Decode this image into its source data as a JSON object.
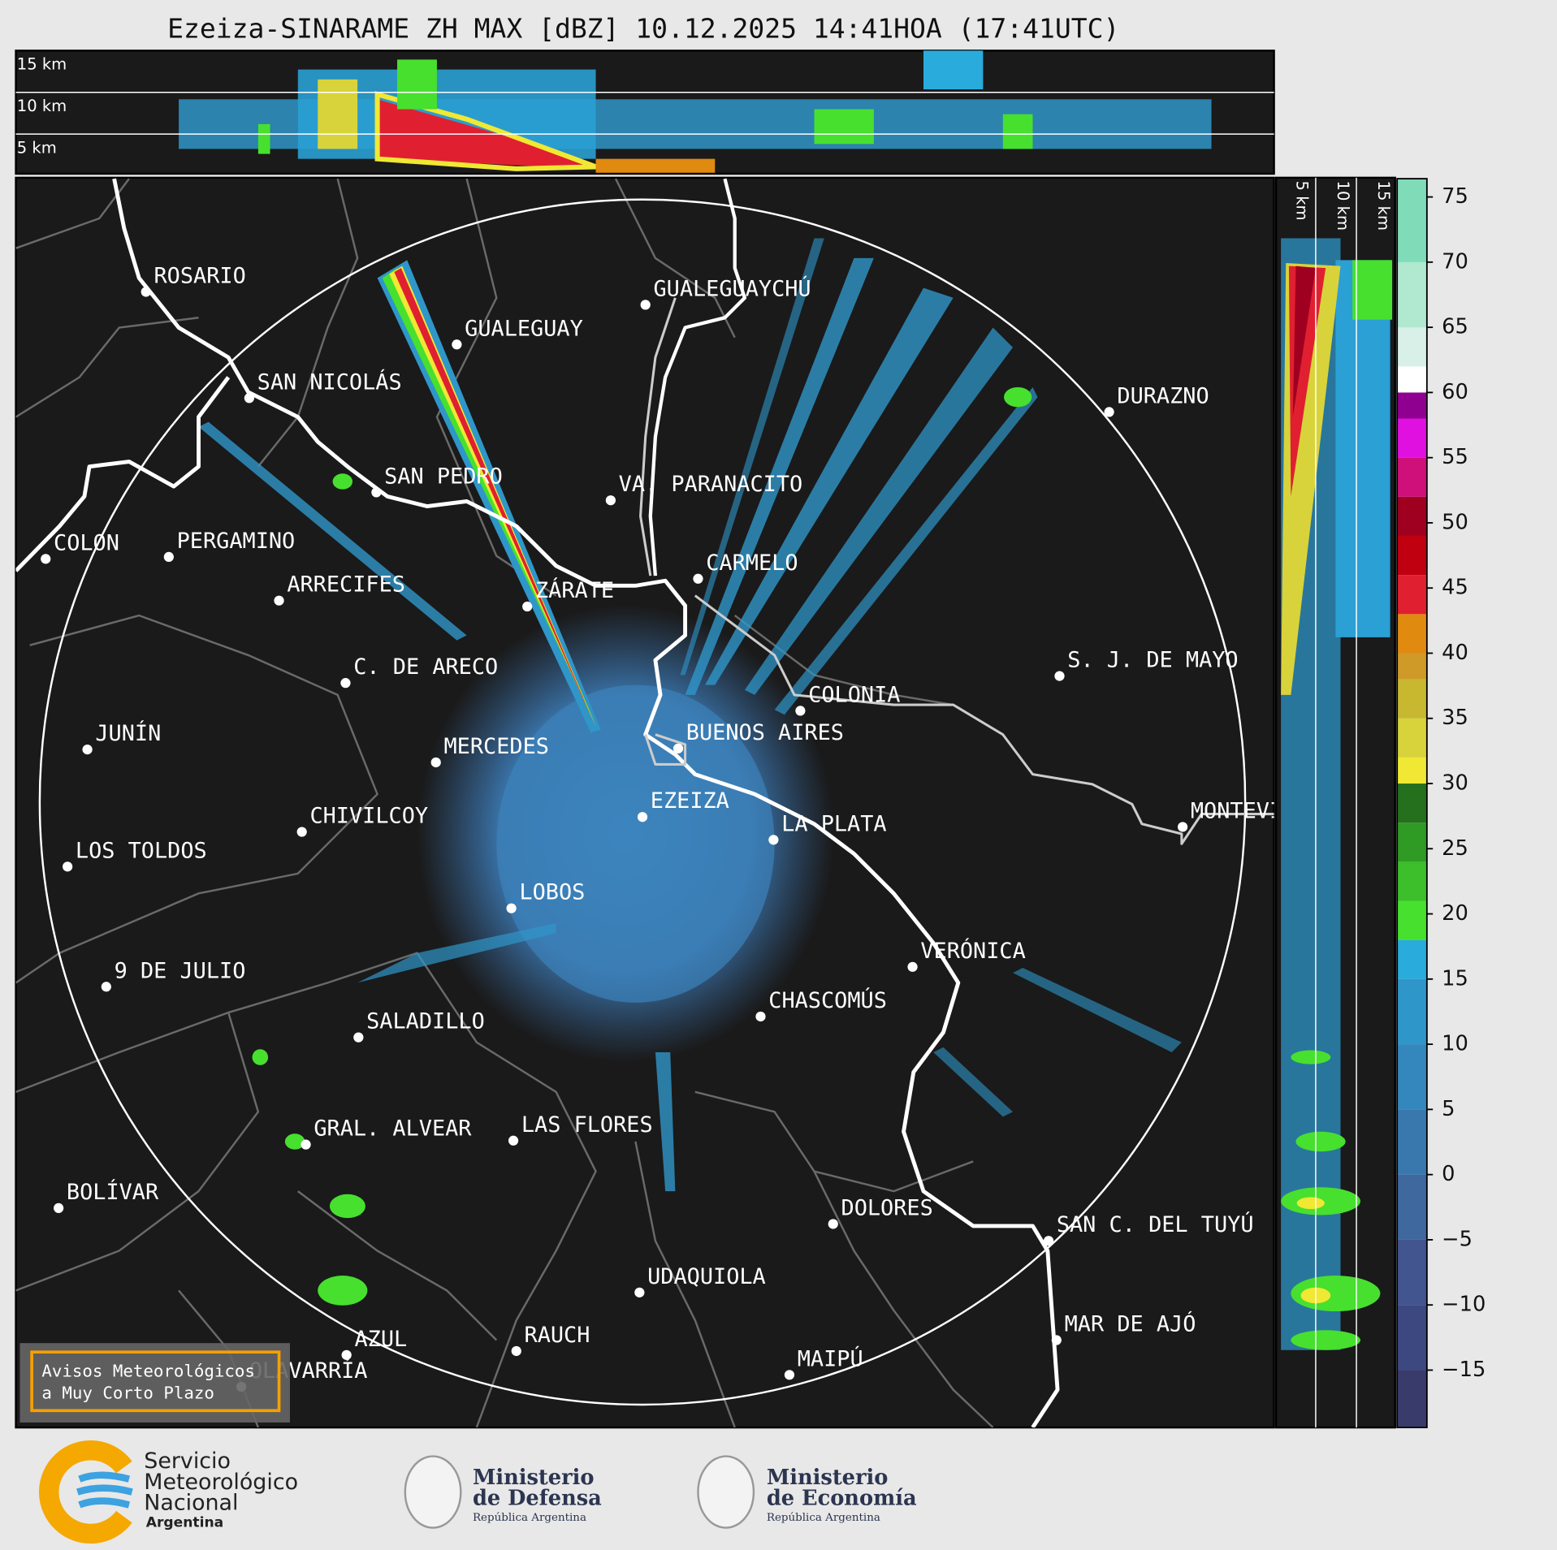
{
  "title": "Ezeiza-SINARAME ZH MAX [dBZ] 10.12.2025 14:41HOA (17:41UTC)",
  "top_panel": {
    "height_labels": [
      "15 km",
      "10 km",
      "5 km"
    ]
  },
  "side_panel": {
    "height_labels": [
      "5 km",
      "10 km",
      "15 km"
    ]
  },
  "cities": [
    {
      "name": "ROSARIO"
    },
    {
      "name": "GUALEGUAYCHÚ"
    },
    {
      "name": "GUALEGUAY"
    },
    {
      "name": "SAN NICOLÁS"
    },
    {
      "name": "DURAZNO"
    },
    {
      "name": "SAN PEDRO"
    },
    {
      "name": "VA. PARANACITO"
    },
    {
      "name": "COLON"
    },
    {
      "name": "PERGAMINO"
    },
    {
      "name": "CARMELO"
    },
    {
      "name": "ARRECIFES"
    },
    {
      "name": "ZÁRATE"
    },
    {
      "name": "S. J. DE MAYO"
    },
    {
      "name": "C. DE ARECO"
    },
    {
      "name": "COLONIA"
    },
    {
      "name": "BUENOS AIRES"
    },
    {
      "name": "JUNÍN"
    },
    {
      "name": "MERCEDES"
    },
    {
      "name": "EZEIZA"
    },
    {
      "name": "MONTEVIDEO"
    },
    {
      "name": "CHIVILCOY"
    },
    {
      "name": "LA PLATA"
    },
    {
      "name": "LOS TOLDOS"
    },
    {
      "name": "LOBOS"
    },
    {
      "name": "VERÓNICA"
    },
    {
      "name": "9 DE JULIO"
    },
    {
      "name": "CHASCOMÚS"
    },
    {
      "name": "SALADILLO"
    },
    {
      "name": "GRAL. ALVEAR"
    },
    {
      "name": "LAS FLORES"
    },
    {
      "name": "BOLÍVAR"
    },
    {
      "name": "DOLORES"
    },
    {
      "name": "SAN C. DEL TUYÚ"
    },
    {
      "name": "UDAQUIOLA"
    },
    {
      "name": "RAUCH"
    },
    {
      "name": "MAR DE AJÓ"
    },
    {
      "name": "AZUL"
    },
    {
      "name": "OLAVARRÍA"
    },
    {
      "name": "MAIPÚ"
    }
  ],
  "colorbar": {
    "lim": [
      -19.4,
      76.4
    ],
    "ticks": [
      75,
      70,
      65,
      60,
      55,
      50,
      45,
      40,
      35,
      30,
      25,
      20,
      15,
      10,
      5,
      0,
      {
        "value": -5,
        "label": "−5"
      },
      {
        "value": -10,
        "label": "−10"
      },
      {
        "value": -15,
        "label": "−15"
      }
    ],
    "bands": [
      {
        "min": -19.4,
        "max": -15,
        "color": "#393c6b"
      },
      {
        "min": -15,
        "max": -10,
        "color": "#3e4880"
      },
      {
        "min": -10,
        "max": -5,
        "color": "#42558f"
      },
      {
        "min": -5,
        "max": 0,
        "color": "#3e689e"
      },
      {
        "min": 0,
        "max": 5,
        "color": "#3978ad"
      },
      {
        "min": 5,
        "max": 10,
        "color": "#3487bc"
      },
      {
        "min": 10,
        "max": 15,
        "color": "#2f96c9"
      },
      {
        "min": 15,
        "max": 18,
        "color": "#29abdc"
      },
      {
        "min": 18,
        "max": 21,
        "color": "#47e02e"
      },
      {
        "min": 21,
        "max": 24,
        "color": "#3cbf2a"
      },
      {
        "min": 24,
        "max": 27,
        "color": "#2f9a24"
      },
      {
        "min": 27,
        "max": 30,
        "color": "#25701d"
      },
      {
        "min": 30,
        "max": 32,
        "color": "#f0e833"
      },
      {
        "min": 32,
        "max": 35,
        "color": "#d8d33a"
      },
      {
        "min": 35,
        "max": 38,
        "color": "#c8b830"
      },
      {
        "min": 38,
        "max": 40,
        "color": "#d09a28"
      },
      {
        "min": 40,
        "max": 43,
        "color": "#e08a10"
      },
      {
        "min": 43,
        "max": 46,
        "color": "#e02030"
      },
      {
        "min": 46,
        "max": 49,
        "color": "#c00010"
      },
      {
        "min": 49,
        "max": 52,
        "color": "#a00020"
      },
      {
        "min": 52,
        "max": 55,
        "color": "#d0107a"
      },
      {
        "min": 55,
        "max": 58,
        "color": "#e010e0"
      },
      {
        "min": 58,
        "max": 60,
        "color": "#900090"
      },
      {
        "min": 60,
        "max": 62,
        "color": "#ffffff"
      },
      {
        "min": 62,
        "max": 65,
        "color": "#d8f0e8"
      },
      {
        "min": 65,
        "max": 70,
        "color": "#b0e8d0"
      },
      {
        "min": 70,
        "max": 76.4,
        "color": "#80dcb8"
      }
    ]
  },
  "warning": {
    "lines": [
      "Avisos Meteorológicos",
      "a Muy Corto Plazo"
    ]
  },
  "footer": {
    "smn": [
      "Servicio",
      "Meteorológico",
      "Nacional",
      "Argentina"
    ],
    "defensa": [
      "Ministerio",
      "de Defensa",
      "República Argentina"
    ],
    "economia": [
      "Ministerio",
      "de Economía",
      "República Argentina"
    ]
  }
}
